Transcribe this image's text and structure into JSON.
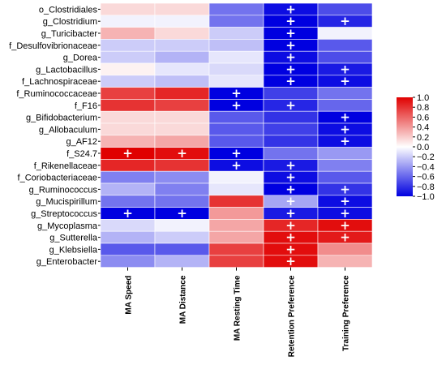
{
  "chart_data": {
    "type": "heatmap",
    "rows": [
      "o_Clostridiales",
      "g_Clostridium",
      "g_Turicibacter",
      "f_Desulfovibrionaceae",
      "g_Dorea",
      "g_Lactobacillus",
      "f_Lachnospiraceae",
      "f_Ruminococcaceae",
      "f_F16",
      "g_Bifidobacterium",
      "g_Allobaculum",
      "g_AF12",
      "f_S24.7",
      "f_Rikenellaceae",
      "f_Coriobacteriaceae",
      "g_Ruminococcus",
      "g_Mucispirillum",
      "g_Streptococcus",
      "g_Mycoplasma",
      "g_Sutterella",
      "g_Klebsiella",
      "g_Enterobacter"
    ],
    "columns": [
      "MA Speed",
      "MA Distance",
      "MA Resting Time",
      "Retention Preference",
      "Training Preference"
    ],
    "values": [
      [
        0.15,
        0.15,
        -0.55,
        -0.95,
        -0.7
      ],
      [
        -0.05,
        -0.05,
        -0.55,
        -1.0,
        -0.85
      ],
      [
        0.3,
        0.15,
        -0.2,
        -1.0,
        -0.05
      ],
      [
        -0.2,
        -0.2,
        -0.25,
        -1.0,
        -0.65
      ],
      [
        -0.2,
        -0.3,
        -0.1,
        -0.95,
        -0.7
      ],
      [
        0.05,
        -0.1,
        -0.15,
        -1.0,
        -0.9
      ],
      [
        -0.2,
        -0.25,
        -0.1,
        -1.0,
        -0.95
      ],
      [
        0.75,
        0.85,
        -1.0,
        -0.75,
        -0.55
      ],
      [
        0.8,
        0.75,
        -1.0,
        -0.85,
        -0.6
      ],
      [
        0.15,
        0.15,
        -0.65,
        -0.8,
        -1.0
      ],
      [
        0.15,
        0.15,
        -0.65,
        -0.75,
        -0.95
      ],
      [
        0.3,
        0.35,
        -0.65,
        -0.8,
        -0.95
      ],
      [
        1.0,
        0.95,
        -1.0,
        -0.55,
        -0.4
      ],
      [
        0.85,
        0.8,
        -0.95,
        -0.9,
        -0.5
      ],
      [
        -0.5,
        -0.45,
        -0.05,
        -0.95,
        -0.65
      ],
      [
        -0.3,
        -0.5,
        -0.1,
        -1.0,
        -0.8
      ],
      [
        -0.55,
        -0.55,
        0.8,
        -0.35,
        -0.95
      ],
      [
        -1.0,
        -1.0,
        0.4,
        -0.9,
        -0.95
      ],
      [
        -0.15,
        -0.05,
        0.35,
        0.85,
        0.95
      ],
      [
        -0.3,
        -0.2,
        0.35,
        0.95,
        0.9
      ],
      [
        -0.65,
        -0.65,
        0.75,
        0.95,
        0.45
      ],
      [
        -0.45,
        -0.3,
        0.75,
        0.95,
        0.3
      ]
    ],
    "significant": [
      [
        0,
        0,
        0,
        1,
        0
      ],
      [
        0,
        0,
        0,
        1,
        1
      ],
      [
        0,
        0,
        0,
        1,
        0
      ],
      [
        0,
        0,
        0,
        1,
        0
      ],
      [
        0,
        0,
        0,
        1,
        0
      ],
      [
        0,
        0,
        0,
        1,
        1
      ],
      [
        0,
        0,
        0,
        1,
        1
      ],
      [
        0,
        0,
        1,
        0,
        0
      ],
      [
        0,
        0,
        1,
        1,
        0
      ],
      [
        0,
        0,
        0,
        0,
        1
      ],
      [
        0,
        0,
        0,
        0,
        1
      ],
      [
        0,
        0,
        0,
        0,
        1
      ],
      [
        1,
        1,
        1,
        0,
        0
      ],
      [
        0,
        0,
        1,
        1,
        0
      ],
      [
        0,
        0,
        0,
        1,
        0
      ],
      [
        0,
        0,
        0,
        1,
        1
      ],
      [
        0,
        0,
        0,
        1,
        1
      ],
      [
        1,
        1,
        0,
        1,
        1
      ],
      [
        0,
        0,
        0,
        1,
        1
      ],
      [
        0,
        0,
        0,
        1,
        1
      ],
      [
        0,
        0,
        0,
        1,
        0
      ],
      [
        0,
        0,
        0,
        1,
        0
      ]
    ],
    "marker_text": "+",
    "colorbar": {
      "ticks": [
        "1.0",
        "0.8",
        "0.6",
        "0.4",
        "0.2",
        "0.0",
        "−0.2",
        "−0.4",
        "−0.6",
        "−0.8",
        "−1.0"
      ],
      "range": [
        -1.0,
        1.0
      ]
    },
    "colors": {
      "low": "#0000e0",
      "mid": "#ffffff",
      "high": "#e00000",
      "grid": "#ffffff"
    }
  }
}
